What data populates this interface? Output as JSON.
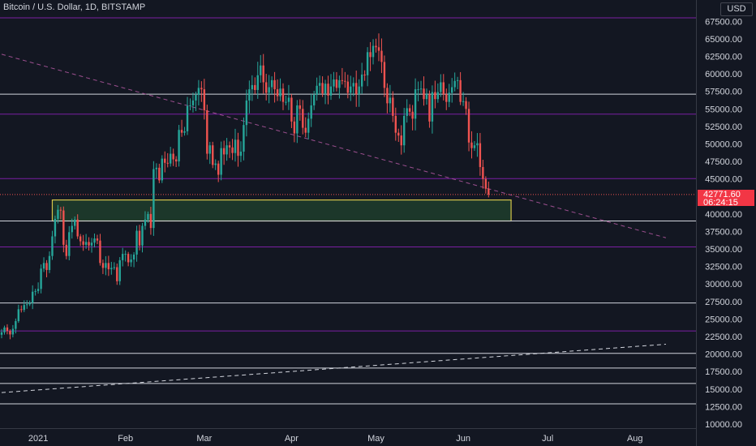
{
  "header": {
    "title": "Bitcoin / U.S. Dollar, 1D, BITSTAMP",
    "currency_button": "USD"
  },
  "last_price": {
    "value": "42771.60",
    "countdown": "06:24:15"
  },
  "colors": {
    "background": "#131722",
    "up": "#26a69a",
    "down": "#ef5350",
    "purple_line": "#7b1fa2",
    "white_line": "#d1d4dc",
    "zone_fill": "#1f3d2b",
    "zone_border": "#d4c34a",
    "trend_up": "#d1d4dc",
    "trend_down": "#9c4f8f"
  },
  "chart_data": {
    "type": "candlestick",
    "title": "Bitcoin / U.S. Dollar, 1D, BITSTAMP",
    "ylim": [
      9000,
      70000
    ],
    "y_ticks": [
      10000,
      12500,
      15000,
      17500,
      20000,
      22500,
      25000,
      27500,
      30000,
      32500,
      35000,
      37500,
      40000,
      42500,
      45000,
      47500,
      50000,
      52500,
      55000,
      57500,
      60000,
      62500,
      65000,
      67500
    ],
    "y_tick_labels": [
      "10000.00",
      "12500.00",
      "15000.00",
      "17500.00",
      "20000.00",
      "22500.00",
      "25000.00",
      "27500.00",
      "30000.00",
      "32500.00",
      "35000.00",
      "37500.00",
      "40000.00",
      "42500.00",
      "45000.00",
      "47500.00",
      "50000.00",
      "52500.00",
      "55000.00",
      "57500.00",
      "60000.00",
      "62500.00",
      "65000.00",
      "67500.00"
    ],
    "x_range": [
      "2020-12-19",
      "2021-08-12"
    ],
    "x_ticks": [
      {
        "date": "2021-01-01",
        "label": "2021"
      },
      {
        "date": "2021-02-01",
        "label": "Feb"
      },
      {
        "date": "2021-03-01",
        "label": "Mar"
      },
      {
        "date": "2021-04-01",
        "label": "Apr"
      },
      {
        "date": "2021-05-01",
        "label": "May"
      },
      {
        "date": "2021-06-01",
        "label": "Jun"
      },
      {
        "date": "2021-07-01",
        "label": "Jul"
      },
      {
        "date": "2021-08-01",
        "label": "Aug"
      }
    ],
    "first_candle_date": "2020-12-19",
    "closes": [
      23100,
      23800,
      23300,
      22800,
      23600,
      24700,
      26400,
      26300,
      27000,
      27100,
      27300,
      28900,
      29000,
      29300,
      32200,
      33000,
      32000,
      34000,
      36800,
      39300,
      40600,
      40500,
      35600,
      34000,
      37400,
      38300,
      39200,
      36800,
      36100,
      35600,
      36000,
      35500,
      35900,
      36500,
      36200,
      33000,
      32300,
      33000,
      32100,
      32300,
      32400,
      30400,
      33400,
      34300,
      34300,
      33100,
      33500,
      34200,
      37600,
      35500,
      38300,
      39200,
      40000,
      38000,
      46400,
      46600,
      44800,
      47900,
      47300,
      47200,
      48600,
      47800,
      47500,
      52000,
      51600,
      51800,
      55400,
      55500,
      56200,
      57000,
      58000,
      57800,
      54800,
      48600,
      49800,
      47000,
      47200,
      45600,
      49400,
      48500,
      49800,
      49500,
      48700,
      50600,
      48300,
      48900,
      52700,
      56200,
      57800,
      58400,
      57700,
      59800,
      61200,
      58800,
      57300,
      58100,
      59100,
      57800,
      56800,
      57900,
      56000,
      56000,
      56600,
      53200,
      51500,
      55500,
      55000,
      52300,
      51600,
      53600,
      55500,
      57000,
      58300,
      58700,
      57200,
      58600,
      56900,
      58200,
      59200,
      58000,
      59100,
      59000,
      58900,
      57300,
      58200,
      58700,
      57100,
      58200,
      59900,
      59800,
      63100,
      62400,
      64000,
      63800,
      63300,
      61700,
      58000,
      55800,
      56600,
      54000,
      51600,
      51200,
      49800,
      54000,
      55100,
      54600,
      53600,
      57800,
      57800,
      57900,
      56400,
      57100,
      53200,
      57400,
      56400,
      57400,
      58800,
      57100,
      56000,
      57300,
      58100,
      59000,
      59100,
      56000,
      56100,
      55000,
      50200,
      49400,
      49800,
      50100,
      46700,
      45000,
      43600,
      42771
    ]
  },
  "levels": {
    "purple": [
      68000,
      54250,
      45050,
      35300,
      23300
    ],
    "white": [
      57100,
      39000,
      27300,
      20100,
      18000,
      15800,
      12900
    ],
    "zone": {
      "top": 42000,
      "bottom": 39000,
      "start": "2021-01-06",
      "end": "2021-06-18"
    },
    "trend_up": [
      {
        "date": "2020-12-19",
        "price": 14500
      },
      {
        "date": "2021-08-12",
        "price": 21400
      }
    ],
    "trend_down": [
      {
        "date": "2020-12-19",
        "price": 62800
      },
      {
        "date": "2021-08-12",
        "price": 36600
      }
    ]
  }
}
